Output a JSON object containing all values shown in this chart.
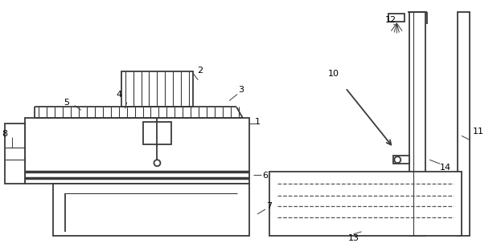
{
  "bg": "#ffffff",
  "lc": "#3a3a3a",
  "fc": "#ffffff",
  "gray": "#b0b0b0",
  "darkgray": "#707070"
}
